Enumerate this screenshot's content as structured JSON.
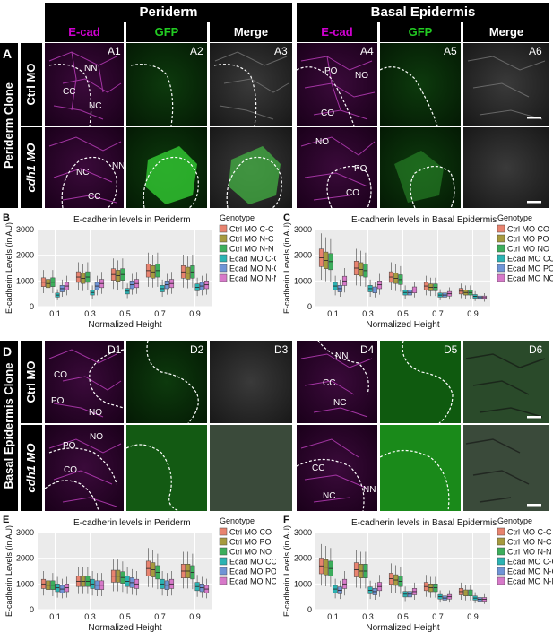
{
  "headers": {
    "periderm": "Periderm",
    "basal": "Basal Epidermis"
  },
  "subheaders": [
    "E-cad",
    "GFP",
    "Merge",
    "E-cad",
    "GFP",
    "Merge"
  ],
  "panel_letters": {
    "A": "A",
    "B": "B",
    "C": "C",
    "D": "D",
    "E": "E",
    "F": "F"
  },
  "row_group_labels": {
    "top": "Periderm Clone",
    "bottom": "Basal Epidermis Clone"
  },
  "row_labels": {
    "ctrl": "Ctrl MO",
    "cdh1": "cdh1 MO"
  },
  "micro_ids_top1": [
    "A1",
    "A2",
    "A3",
    "A4",
    "A5",
    "A6"
  ],
  "micro_ids_bottom1": [
    "D1",
    "D2",
    "D3",
    "D4",
    "D5",
    "D6"
  ],
  "cell_labels": {
    "a1": [
      "NN",
      "CC",
      "NC"
    ],
    "a4": [
      "PO",
      "NO",
      "CO"
    ],
    "a1b": [
      "NC",
      "NN",
      "CC"
    ],
    "a4b": [
      "NO",
      "PO",
      "CO"
    ],
    "d1": [
      "CO",
      "PO",
      "NO"
    ],
    "d4": [
      "NN",
      "CC",
      "NC"
    ],
    "d1b": [
      "NO",
      "PO",
      "CO"
    ],
    "d4b": [
      "CC",
      "NC",
      "NN"
    ]
  },
  "colors": {
    "ecad": "#d000d0",
    "gfp": "#22cc22",
    "header_bg": "#000000"
  },
  "chart_data": [
    {
      "id": "B",
      "type": "box",
      "title": "E-cadherin levels in Periderm",
      "xlabel": "Normalized Height",
      "ylabel": "E-cadherin Levels (in AU)",
      "ylim": [
        0,
        3000
      ],
      "yticks": [
        0,
        1000,
        2000,
        3000
      ],
      "x": [
        "0.1",
        "0.3",
        "0.5",
        "0.7",
        "0.9"
      ],
      "legend_title": "Genotype",
      "series": [
        {
          "name": "Ctrl MO C-C",
          "color": "#e8836f",
          "medians": [
            950,
            1150,
            1250,
            1400,
            1350
          ]
        },
        {
          "name": "Ctrl MO N-C",
          "color": "#a69a3e",
          "medians": [
            900,
            1100,
            1200,
            1350,
            1300
          ]
        },
        {
          "name": "Ctrl MO N-N",
          "color": "#3cae5c",
          "medians": [
            950,
            1150,
            1250,
            1400,
            1350
          ]
        },
        {
          "name": "Ecad MO C-C",
          "color": "#2bb3b3",
          "medians": [
            450,
            550,
            600,
            700,
            750
          ]
        },
        {
          "name": "Ecad MO N-C",
          "color": "#6f94d6",
          "medians": [
            700,
            800,
            850,
            850,
            800
          ]
        },
        {
          "name": "Ecad MO N-N",
          "color": "#d779c9",
          "medians": [
            800,
            900,
            900,
            900,
            850
          ]
        }
      ]
    },
    {
      "id": "C",
      "type": "box",
      "title": "E-cadherin levels in Basal Epidermis",
      "xlabel": "Normalized Height",
      "ylabel": "E-cadherin Levels (in AU)",
      "ylim": [
        0,
        3000
      ],
      "yticks": [
        0,
        1000,
        2000,
        3000
      ],
      "x": [
        "0.1",
        "0.3",
        "0.5",
        "0.7",
        "0.9"
      ],
      "legend_title": "Genotype",
      "series": [
        {
          "name": "Ctrl MO CO",
          "color": "#e8836f",
          "medians": [
            1900,
            1500,
            1150,
            800,
            600
          ]
        },
        {
          "name": "Ctrl MO PO",
          "color": "#a69a3e",
          "medians": [
            1800,
            1450,
            1100,
            750,
            550
          ]
        },
        {
          "name": "Ctrl MO NO",
          "color": "#3cae5c",
          "medians": [
            1750,
            1400,
            1050,
            750,
            550
          ]
        },
        {
          "name": "Ecad MO CO",
          "color": "#2bb3b3",
          "medians": [
            800,
            700,
            550,
            450,
            400
          ]
        },
        {
          "name": "Ecad MO PO",
          "color": "#6f94d6",
          "medians": [
            700,
            650,
            550,
            450,
            350
          ]
        },
        {
          "name": "Ecad MO NO",
          "color": "#d779c9",
          "medians": [
            1000,
            850,
            650,
            500,
            350
          ]
        }
      ]
    },
    {
      "id": "E",
      "type": "box",
      "title": "E-cadherin levels in Periderm",
      "xlabel": "Normalized Height",
      "ylabel": "E-cadherin Levels (in AU)",
      "ylim": [
        0,
        3000
      ],
      "yticks": [
        0,
        1000,
        2000,
        3000
      ],
      "x": [
        "0.1",
        "0.3",
        "0.5",
        "0.7",
        "0.9"
      ],
      "legend_title": "Genotype",
      "series": [
        {
          "name": "Ctrl MO CO",
          "color": "#e8836f",
          "medians": [
            1000,
            1100,
            1300,
            1600,
            1500
          ]
        },
        {
          "name": "Ctrl MO PO",
          "color": "#a69a3e",
          "medians": [
            950,
            1100,
            1300,
            1550,
            1500
          ]
        },
        {
          "name": "Ctrl MO NO",
          "color": "#3cae5c",
          "medians": [
            950,
            1100,
            1250,
            1450,
            1450
          ]
        },
        {
          "name": "Ecad MO CO",
          "color": "#2bb3b3",
          "medians": [
            850,
            1000,
            1100,
            1000,
            900
          ]
        },
        {
          "name": "Ecad MO PO",
          "color": "#6f94d6",
          "medians": [
            800,
            950,
            1050,
            950,
            850
          ]
        },
        {
          "name": "Ecad MO NO",
          "color": "#d779c9",
          "medians": [
            850,
            950,
            1000,
            1000,
            800
          ]
        }
      ]
    },
    {
      "id": "F",
      "type": "box",
      "title": "E-cadherin levels in Basal Epidermis",
      "xlabel": "Normalized Height",
      "ylabel": "E-cadherin Levels (in AU)",
      "ylim": [
        0,
        3000
      ],
      "yticks": [
        0,
        1000,
        2000,
        3000
      ],
      "x": [
        "0.1",
        "0.3",
        "0.5",
        "0.7",
        "0.9"
      ],
      "legend_title": "Genotype",
      "series": [
        {
          "name": "Ctrl MO C-C",
          "color": "#e8836f",
          "medians": [
            1700,
            1550,
            1200,
            900,
            700
          ]
        },
        {
          "name": "Ctrl MO N-C",
          "color": "#a69a3e",
          "medians": [
            1650,
            1500,
            1150,
            850,
            650
          ]
        },
        {
          "name": "Ctrl MO N-N",
          "color": "#3cae5c",
          "medians": [
            1600,
            1500,
            1100,
            850,
            650
          ]
        },
        {
          "name": "Ecad MO C-C",
          "color": "#2bb3b3",
          "medians": [
            800,
            750,
            600,
            500,
            450
          ]
        },
        {
          "name": "Ecad MO N-C",
          "color": "#6f94d6",
          "medians": [
            750,
            700,
            600,
            450,
            400
          ]
        },
        {
          "name": "Ecad MO N-N",
          "color": "#d779c9",
          "medians": [
            1000,
            900,
            700,
            500,
            400
          ]
        }
      ]
    }
  ]
}
